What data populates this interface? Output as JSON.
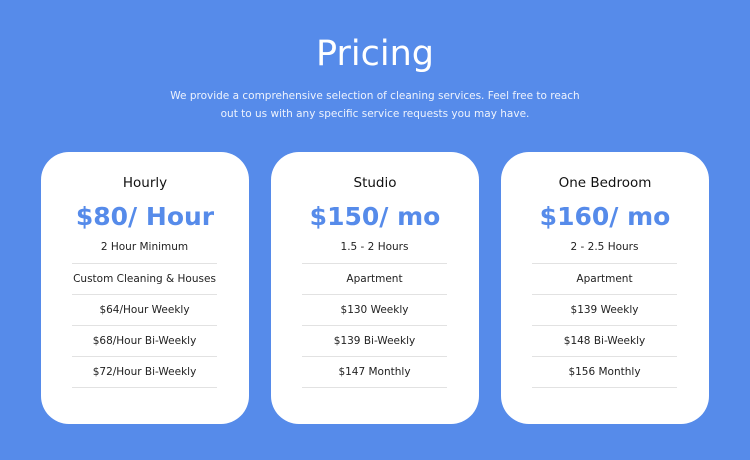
{
  "header": {
    "title": "Pricing",
    "subtitle": "We provide a comprehensive selection of cleaning services. Feel free to reach out to us with any specific service requests you may have."
  },
  "accent_color": "#568bea",
  "plans": [
    {
      "name": "Hourly",
      "price": "$80/ Hour",
      "features": [
        "2 Hour Minimum",
        "Custom Cleaning & Houses",
        "$64/Hour Weekly",
        "$68/Hour Bi-Weekly",
        "$72/Hour Bi-Weekly"
      ]
    },
    {
      "name": "Studio",
      "price": "$150/ mo",
      "features": [
        "1.5 - 2 Hours",
        "Apartment",
        "$130 Weekly",
        "$139 Bi-Weekly",
        "$147 Monthly"
      ]
    },
    {
      "name": "One Bedroom",
      "price": "$160/ mo",
      "features": [
        "2 - 2.5 Hours",
        "Apartment",
        "$139 Weekly",
        "$148 Bi-Weekly",
        "$156 Monthly"
      ]
    }
  ]
}
